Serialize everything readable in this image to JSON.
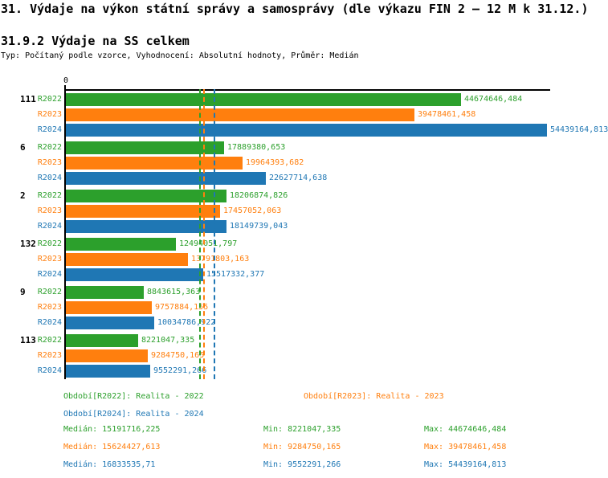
{
  "page": {
    "title": "31. Výdaje na výkon státní správy a samosprávy (dle výkazu FIN 2 – 12 M k 31.12.)",
    "subtitle": "31.9.2 Výdaje na SS celkem",
    "meta": "Typ: Počítaný podle vzorce, Vyhodnocení: Absolutní hodnoty, Průměr: Medián"
  },
  "chart_data": {
    "type": "bar",
    "orientation": "horizontal",
    "title": "31.9.2 Výdaje na SS celkem",
    "categories": [
      "111",
      "6",
      "2",
      "132",
      "9",
      "113"
    ],
    "series": [
      {
        "name": "R2022",
        "color": "#2ca02c",
        "values": [
          44674646.484,
          17889380.653,
          18206874.826,
          12494051.797,
          8843615.363,
          8221047.335
        ],
        "value_labels": [
          "44674646,484",
          "17889380,653",
          "18206874,826",
          "12494051,797",
          "8843615,363",
          "8221047,335"
        ],
        "median": 15191716.225
      },
      {
        "name": "R2023",
        "color": "#ff7f0e",
        "values": [
          39478461.458,
          19964393.682,
          17457052.063,
          13791803.163,
          9757884.155,
          9284750.165
        ],
        "value_labels": [
          "39478461,458",
          "19964393,682",
          "17457052,063",
          "13791803,163",
          "9757884,155",
          "9284750,165"
        ],
        "median": 15624427.613
      },
      {
        "name": "R2024",
        "color": "#1f77b4",
        "values": [
          54439164.813,
          22627714.638,
          18149739.043,
          15517332.377,
          10034786.922,
          9552291.266
        ],
        "value_labels": [
          "54439164,813",
          "22627714,638",
          "18149739,043",
          "15517332,377",
          "10034786,922",
          "9552291,266"
        ],
        "median": 16833535.71
      }
    ],
    "axis": {
      "min": 0,
      "max": 54439164.813,
      "origin_tick_label": "0"
    },
    "grid": false,
    "legend_position": "bottom"
  },
  "legend": {
    "items": [
      {
        "label": "Období[R2022]: Realita - 2022",
        "color": "#2ca02c"
      },
      {
        "label": "Období[R2023]: Realita - 2023",
        "color": "#ff7f0e"
      },
      {
        "label": "Období[R2024]: Realita - 2024",
        "color": "#1f77b4"
      }
    ]
  },
  "stats": {
    "rows": [
      {
        "series": "R2022",
        "color": "#2ca02c",
        "median": "Medián: 15191716,225",
        "min": "Min: 8221047,335",
        "max": "Max: 44674646,484"
      },
      {
        "series": "R2023",
        "color": "#ff7f0e",
        "median": "Medián: 15624427,613",
        "min": "Min: 9284750,165",
        "max": "Max: 39478461,458"
      },
      {
        "series": "R2024",
        "color": "#1f77b4",
        "median": "Medián: 16833535,71",
        "min": "Min: 9552291,266",
        "max": "Max: 54439164,813"
      }
    ]
  }
}
